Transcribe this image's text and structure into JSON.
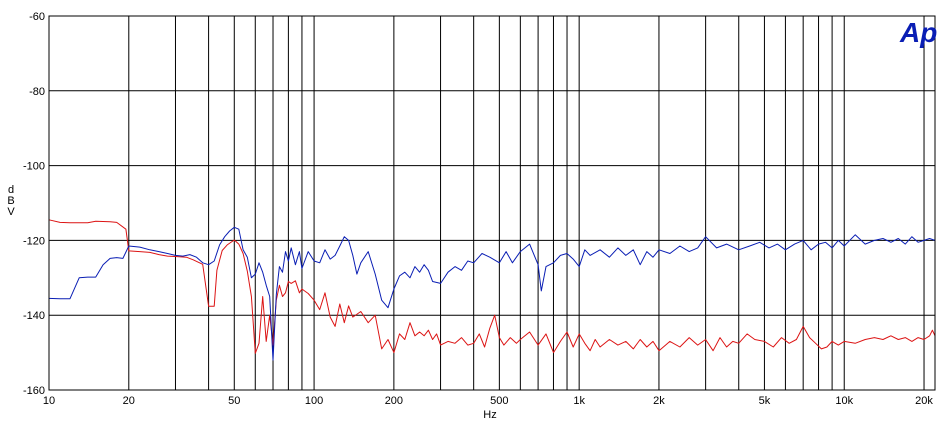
{
  "chart_data": {
    "type": "line",
    "title": "",
    "xlabel": "Hz",
    "ylabel": "dBV",
    "xscale": "log",
    "xlim": [
      10,
      22000
    ],
    "ylim": [
      -160,
      -60
    ],
    "grid": true,
    "logo_text": "Ap",
    "logo_color": "#0a1eb4",
    "xticks": [
      {
        "value": 10,
        "label": "10"
      },
      {
        "value": 20,
        "label": "20"
      },
      {
        "value": 50,
        "label": "50"
      },
      {
        "value": 100,
        "label": "100"
      },
      {
        "value": 200,
        "label": "200"
      },
      {
        "value": 500,
        "label": "500"
      },
      {
        "value": 1000,
        "label": "1k"
      },
      {
        "value": 2000,
        "label": "2k"
      },
      {
        "value": 5000,
        "label": "5k"
      },
      {
        "value": 10000,
        "label": "10k"
      },
      {
        "value": 20000,
        "label": "20k"
      }
    ],
    "yticks": [
      {
        "value": -60,
        "label": "-60"
      },
      {
        "value": -80,
        "label": "-80"
      },
      {
        "value": -100,
        "label": "-100"
      },
      {
        "value": -120,
        "label": "-120"
      },
      {
        "value": -140,
        "label": "-140"
      },
      {
        "value": -160,
        "label": "-160"
      }
    ],
    "series": [
      {
        "color": "#dc1414",
        "points": [
          [
            10,
            -114.5
          ],
          [
            11,
            -115.2
          ],
          [
            12,
            -115.3
          ],
          [
            14,
            -115.3
          ],
          [
            15,
            -114.9
          ],
          [
            17,
            -115.0
          ],
          [
            18,
            -115.2
          ],
          [
            19.5,
            -117.0
          ],
          [
            20,
            -122.8
          ],
          [
            22,
            -123.0
          ],
          [
            24,
            -123.2
          ],
          [
            26,
            -123.8
          ],
          [
            28,
            -124.2
          ],
          [
            30,
            -124.3
          ],
          [
            33,
            -124.5
          ],
          [
            35,
            -125.2
          ],
          [
            38,
            -126.4
          ],
          [
            40,
            -137.6
          ],
          [
            42,
            -137.6
          ],
          [
            43,
            -128.0
          ],
          [
            45,
            -122.7
          ],
          [
            47,
            -121.2
          ],
          [
            50,
            -119.9
          ],
          [
            52,
            -121.0
          ],
          [
            54,
            -123.5
          ],
          [
            56,
            -128.2
          ],
          [
            58,
            -135.0
          ],
          [
            60,
            -150.2
          ],
          [
            62,
            -147.5
          ],
          [
            64,
            -135.0
          ],
          [
            66,
            -147.0
          ],
          [
            68,
            -140.0
          ],
          [
            70,
            -148.0
          ],
          [
            72,
            -136.0
          ],
          [
            74,
            -132.0
          ],
          [
            76,
            -135.0
          ],
          [
            78,
            -134.0
          ],
          [
            80,
            -131.0
          ],
          [
            82,
            -131.5
          ],
          [
            85,
            -130.8
          ],
          [
            88,
            -134.0
          ],
          [
            90,
            -133.0
          ],
          [
            95,
            -134.2
          ],
          [
            100,
            -136.0
          ],
          [
            105,
            -138.5
          ],
          [
            110,
            -134.0
          ],
          [
            115,
            -140.5
          ],
          [
            120,
            -143.0
          ],
          [
            125,
            -137.0
          ],
          [
            130,
            -142.0
          ],
          [
            135,
            -137.5
          ],
          [
            140,
            -140.5
          ],
          [
            150,
            -139.0
          ],
          [
            160,
            -142.0
          ],
          [
            170,
            -140.0
          ],
          [
            180,
            -149.0
          ],
          [
            190,
            -146.5
          ],
          [
            200,
            -150.0
          ],
          [
            210,
            -145.0
          ],
          [
            220,
            -146.5
          ],
          [
            230,
            -142.0
          ],
          [
            240,
            -145.5
          ],
          [
            250,
            -144.5
          ],
          [
            260,
            -145.5
          ],
          [
            270,
            -144.0
          ],
          [
            280,
            -146.5
          ],
          [
            290,
            -145.0
          ],
          [
            300,
            -148.0
          ],
          [
            320,
            -147.0
          ],
          [
            340,
            -147.5
          ],
          [
            360,
            -146.0
          ],
          [
            380,
            -148.0
          ],
          [
            400,
            -147.5
          ],
          [
            420,
            -145.0
          ],
          [
            440,
            -148.5
          ],
          [
            460,
            -143.5
          ],
          [
            480,
            -140.0
          ],
          [
            500,
            -146.0
          ],
          [
            520,
            -148.0
          ],
          [
            550,
            -146.0
          ],
          [
            580,
            -147.5
          ],
          [
            600,
            -146.5
          ],
          [
            650,
            -144.5
          ],
          [
            700,
            -148.0
          ],
          [
            750,
            -145.0
          ],
          [
            800,
            -150.0
          ],
          [
            850,
            -147.0
          ],
          [
            900,
            -144.5
          ],
          [
            950,
            -148.5
          ],
          [
            1000,
            -145.0
          ],
          [
            1050,
            -147.5
          ],
          [
            1100,
            -149.5
          ],
          [
            1150,
            -146.5
          ],
          [
            1200,
            -148.5
          ],
          [
            1300,
            -146.5
          ],
          [
            1400,
            -148.0
          ],
          [
            1500,
            -147.0
          ],
          [
            1600,
            -149.0
          ],
          [
            1700,
            -146.5
          ],
          [
            1800,
            -148.5
          ],
          [
            1900,
            -147.0
          ],
          [
            2000,
            -149.5
          ],
          [
            2200,
            -147.0
          ],
          [
            2400,
            -148.5
          ],
          [
            2600,
            -146.0
          ],
          [
            2800,
            -148.0
          ],
          [
            3000,
            -146.5
          ],
          [
            3200,
            -149.5
          ],
          [
            3400,
            -146.0
          ],
          [
            3600,
            -148.5
          ],
          [
            3800,
            -147.0
          ],
          [
            4000,
            -147.5
          ],
          [
            4300,
            -145.0
          ],
          [
            4600,
            -146.5
          ],
          [
            5000,
            -147.0
          ],
          [
            5400,
            -148.5
          ],
          [
            5800,
            -146.0
          ],
          [
            6200,
            -147.5
          ],
          [
            6600,
            -146.5
          ],
          [
            7000,
            -143.0
          ],
          [
            7400,
            -146.0
          ],
          [
            7800,
            -147.5
          ],
          [
            8200,
            -149.0
          ],
          [
            8600,
            -148.5
          ],
          [
            9000,
            -147.0
          ],
          [
            9500,
            -148.0
          ],
          [
            10000,
            -147.0
          ],
          [
            11000,
            -147.5
          ],
          [
            12000,
            -146.5
          ],
          [
            13000,
            -146.0
          ],
          [
            14000,
            -146.5
          ],
          [
            15000,
            -145.5
          ],
          [
            16000,
            -146.5
          ],
          [
            17000,
            -146.0
          ],
          [
            18000,
            -147.0
          ],
          [
            19000,
            -146.0
          ],
          [
            20000,
            -146.5
          ],
          [
            21000,
            -145.5
          ],
          [
            21500,
            -144.0
          ],
          [
            22000,
            -145.5
          ]
        ]
      },
      {
        "color": "#0a1eb4",
        "points": [
          [
            10,
            -135.5
          ],
          [
            11,
            -135.6
          ],
          [
            12,
            -135.6
          ],
          [
            13,
            -130.0
          ],
          [
            14,
            -129.8
          ],
          [
            15,
            -129.8
          ],
          [
            16,
            -126.5
          ],
          [
            17,
            -124.8
          ],
          [
            18,
            -124.6
          ],
          [
            19,
            -124.8
          ],
          [
            20,
            -121.5
          ],
          [
            22,
            -121.8
          ],
          [
            24,
            -122.5
          ],
          [
            26,
            -123.0
          ],
          [
            28,
            -123.5
          ],
          [
            30,
            -124.0
          ],
          [
            32,
            -124.2
          ],
          [
            34,
            -123.8
          ],
          [
            36,
            -124.5
          ],
          [
            38,
            -126.0
          ],
          [
            40,
            -126.5
          ],
          [
            42,
            -125.5
          ],
          [
            44,
            -121.2
          ],
          [
            46,
            -119.0
          ],
          [
            48,
            -117.5
          ],
          [
            50,
            -116.5
          ],
          [
            52,
            -117.0
          ],
          [
            54,
            -122.5
          ],
          [
            56,
            -124.5
          ],
          [
            58,
            -130.0
          ],
          [
            60,
            -129.0
          ],
          [
            62,
            -126.0
          ],
          [
            64,
            -128.5
          ],
          [
            66,
            -132.0
          ],
          [
            68,
            -135.0
          ],
          [
            70,
            -152.0
          ],
          [
            72,
            -134.5
          ],
          [
            74,
            -127.0
          ],
          [
            76,
            -128.5
          ],
          [
            78,
            -123.0
          ],
          [
            80,
            -125.5
          ],
          [
            82,
            -122.0
          ],
          [
            85,
            -126.5
          ],
          [
            88,
            -123.0
          ],
          [
            90,
            -127.5
          ],
          [
            95,
            -123.0
          ],
          [
            100,
            -125.5
          ],
          [
            105,
            -126.0
          ],
          [
            110,
            -122.5
          ],
          [
            115,
            -125.0
          ],
          [
            120,
            -124.0
          ],
          [
            125,
            -121.5
          ],
          [
            130,
            -119.0
          ],
          [
            135,
            -120.0
          ],
          [
            140,
            -124.0
          ],
          [
            145,
            -129.0
          ],
          [
            150,
            -126.0
          ],
          [
            160,
            -123.0
          ],
          [
            170,
            -129.0
          ],
          [
            180,
            -136.0
          ],
          [
            190,
            -138.0
          ],
          [
            200,
            -133.0
          ],
          [
            210,
            -129.5
          ],
          [
            220,
            -128.5
          ],
          [
            230,
            -130.0
          ],
          [
            240,
            -127.0
          ],
          [
            250,
            -128.5
          ],
          [
            260,
            -126.5
          ],
          [
            270,
            -128.0
          ],
          [
            280,
            -131.0
          ],
          [
            300,
            -131.5
          ],
          [
            320,
            -128.5
          ],
          [
            340,
            -127.0
          ],
          [
            360,
            -128.0
          ],
          [
            380,
            -125.5
          ],
          [
            400,
            -126.0
          ],
          [
            430,
            -123.5
          ],
          [
            460,
            -124.5
          ],
          [
            500,
            -126.0
          ],
          [
            530,
            -123.0
          ],
          [
            560,
            -126.0
          ],
          [
            600,
            -123.0
          ],
          [
            650,
            -121.0
          ],
          [
            700,
            -126.5
          ],
          [
            720,
            -133.5
          ],
          [
            750,
            -127.0
          ],
          [
            800,
            -126.0
          ],
          [
            850,
            -124.0
          ],
          [
            900,
            -123.5
          ],
          [
            950,
            -125.0
          ],
          [
            1000,
            -127.0
          ],
          [
            1050,
            -122.5
          ],
          [
            1100,
            -124.0
          ],
          [
            1200,
            -122.5
          ],
          [
            1300,
            -124.5
          ],
          [
            1400,
            -122.0
          ],
          [
            1500,
            -124.0
          ],
          [
            1600,
            -122.5
          ],
          [
            1700,
            -126.5
          ],
          [
            1800,
            -123.0
          ],
          [
            1900,
            -124.5
          ],
          [
            2000,
            -122.5
          ],
          [
            2200,
            -123.5
          ],
          [
            2400,
            -121.5
          ],
          [
            2600,
            -123.0
          ],
          [
            2800,
            -122.0
          ],
          [
            3000,
            -119.0
          ],
          [
            3300,
            -122.0
          ],
          [
            3600,
            -121.0
          ],
          [
            4000,
            -122.5
          ],
          [
            4400,
            -121.5
          ],
          [
            4800,
            -120.5
          ],
          [
            5200,
            -122.0
          ],
          [
            5600,
            -121.0
          ],
          [
            6000,
            -122.5
          ],
          [
            6500,
            -121.0
          ],
          [
            7000,
            -120.0
          ],
          [
            7500,
            -122.5
          ],
          [
            8000,
            -121.0
          ],
          [
            8500,
            -120.5
          ],
          [
            9000,
            -122.0
          ],
          [
            9500,
            -120.0
          ],
          [
            10000,
            -121.5
          ],
          [
            11000,
            -118.5
          ],
          [
            12000,
            -121.0
          ],
          [
            13000,
            -120.0
          ],
          [
            14000,
            -119.5
          ],
          [
            15000,
            -120.5
          ],
          [
            16000,
            -119.5
          ],
          [
            17000,
            -121.0
          ],
          [
            18000,
            -119.0
          ],
          [
            19000,
            -120.5
          ],
          [
            20000,
            -120.0
          ],
          [
            21000,
            -119.5
          ],
          [
            22000,
            -120.0
          ]
        ]
      }
    ]
  }
}
